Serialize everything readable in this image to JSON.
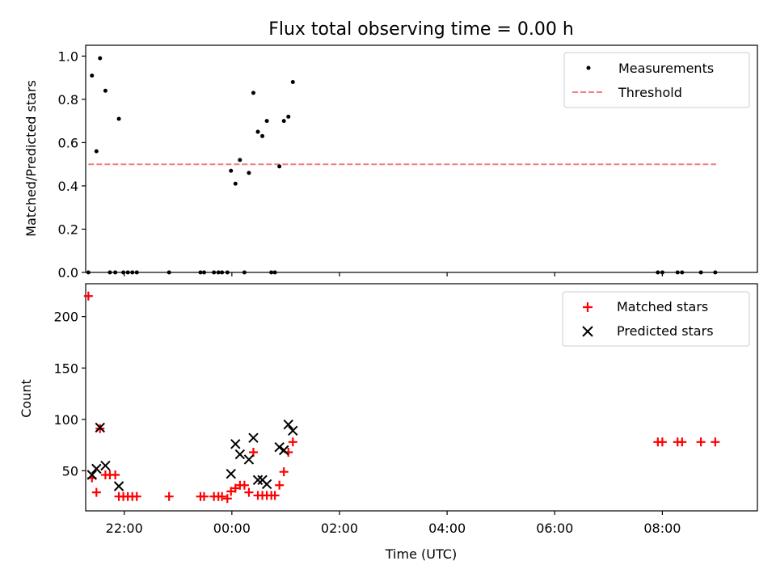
{
  "chart_data": [
    {
      "type": "scatter",
      "title": "Flux total observing time = 0.00 h",
      "ylabel": "Matched/Predicted stars",
      "xlim": [
        "21:17",
        "09:46"
      ],
      "ylim": [
        0,
        1.05
      ],
      "yticks": [
        0.0,
        0.2,
        0.4,
        0.6,
        0.8,
        1.0
      ],
      "ytick_labels": [
        "0.0",
        "0.2",
        "0.4",
        "0.6",
        "0.8",
        "1.0"
      ],
      "legend": {
        "position": "upper right",
        "entries": [
          "Measurements",
          "Threshold"
        ]
      },
      "threshold": {
        "name": "Threshold",
        "value": 0.5,
        "x_range": [
          "21:20",
          "09:00"
        ],
        "color": "#f08080",
        "style": "dashed"
      },
      "series": [
        {
          "name": "Measurements",
          "color": "#000000",
          "marker": "dot",
          "points": [
            [
              "21:20",
              0.0
            ],
            [
              "21:24",
              0.91
            ],
            [
              "21:29",
              0.56
            ],
            [
              "21:33",
              0.99
            ],
            [
              "21:39",
              0.84
            ],
            [
              "21:44",
              0.0
            ],
            [
              "21:50",
              0.0
            ],
            [
              "21:54",
              0.71
            ],
            [
              "21:59",
              0.0
            ],
            [
              "22:04",
              0.0
            ],
            [
              "22:09",
              0.0
            ],
            [
              "22:14",
              0.0
            ],
            [
              "22:50",
              0.0
            ],
            [
              "23:25",
              0.0
            ],
            [
              "23:29",
              0.0
            ],
            [
              "23:40",
              0.0
            ],
            [
              "23:45",
              0.0
            ],
            [
              "23:49",
              0.0
            ],
            [
              "23:55",
              0.0
            ],
            [
              "23:59",
              0.47
            ],
            [
              "00:04",
              0.41
            ],
            [
              "00:09",
              0.52
            ],
            [
              "00:14",
              0.0
            ],
            [
              "00:19",
              0.46
            ],
            [
              "00:24",
              0.83
            ],
            [
              "00:29",
              0.65
            ],
            [
              "00:34",
              0.63
            ],
            [
              "00:39",
              0.7
            ],
            [
              "00:44",
              0.0
            ],
            [
              "00:48",
              0.0
            ],
            [
              "00:53",
              0.49
            ],
            [
              "00:58",
              0.7
            ],
            [
              "01:03",
              0.72
            ],
            [
              "01:08",
              0.88
            ],
            [
              "07:55",
              0.0
            ],
            [
              "08:00",
              0.0
            ],
            [
              "08:17",
              0.0
            ],
            [
              "08:22",
              0.0
            ],
            [
              "08:43",
              0.0
            ],
            [
              "08:59",
              0.0
            ]
          ]
        }
      ]
    },
    {
      "type": "scatter",
      "xlabel": "Time (UTC)",
      "ylabel": "Count",
      "xlim": [
        "21:17",
        "09:46"
      ],
      "ylim": [
        11,
        232
      ],
      "yticks": [
        50,
        100,
        150,
        200
      ],
      "ytick_labels": [
        "50",
        "100",
        "150",
        "200"
      ],
      "xticks": [
        "22:00",
        "00:00",
        "02:00",
        "04:00",
        "06:00",
        "08:00"
      ],
      "legend": {
        "position": "upper right",
        "entries": [
          "Matched stars",
          "Predicted stars"
        ]
      },
      "series": [
        {
          "name": "Matched stars",
          "color": "#ff0000",
          "marker": "plus",
          "points": [
            [
              "21:20",
              220
            ],
            [
              "21:24",
              43
            ],
            [
              "21:29",
              29
            ],
            [
              "21:33",
              91
            ],
            [
              "21:39",
              46
            ],
            [
              "21:44",
              46
            ],
            [
              "21:50",
              46
            ],
            [
              "21:54",
              25
            ],
            [
              "21:59",
              25
            ],
            [
              "22:04",
              25
            ],
            [
              "22:09",
              25
            ],
            [
              "22:14",
              25
            ],
            [
              "22:50",
              25
            ],
            [
              "23:25",
              25
            ],
            [
              "23:29",
              25
            ],
            [
              "23:40",
              25
            ],
            [
              "23:45",
              25
            ],
            [
              "23:49",
              25
            ],
            [
              "23:55",
              23
            ],
            [
              "23:59",
              30
            ],
            [
              "00:04",
              33
            ],
            [
              "00:09",
              36
            ],
            [
              "00:14",
              36
            ],
            [
              "00:19",
              29
            ],
            [
              "00:24",
              68
            ],
            [
              "00:29",
              26
            ],
            [
              "00:34",
              26
            ],
            [
              "00:39",
              26
            ],
            [
              "00:44",
              26
            ],
            [
              "00:48",
              26
            ],
            [
              "00:53",
              36
            ],
            [
              "00:58",
              49
            ],
            [
              "01:03",
              68
            ],
            [
              "01:08",
              78
            ],
            [
              "07:55",
              78
            ],
            [
              "08:00",
              78
            ],
            [
              "08:17",
              78
            ],
            [
              "08:22",
              78
            ],
            [
              "08:43",
              78
            ],
            [
              "08:59",
              78
            ]
          ]
        },
        {
          "name": "Predicted stars",
          "color": "#000000",
          "marker": "x",
          "points": [
            [
              "21:24",
              46
            ],
            [
              "21:29",
              52
            ],
            [
              "21:33",
              92
            ],
            [
              "21:39",
              55
            ],
            [
              "21:54",
              35
            ],
            [
              "23:59",
              47
            ],
            [
              "00:04",
              76
            ],
            [
              "00:09",
              66
            ],
            [
              "00:19",
              61
            ],
            [
              "00:24",
              82
            ],
            [
              "00:29",
              41
            ],
            [
              "00:34",
              41
            ],
            [
              "00:39",
              37
            ],
            [
              "00:53",
              73
            ],
            [
              "00:58",
              70
            ],
            [
              "01:03",
              95
            ],
            [
              "01:08",
              89
            ]
          ]
        }
      ]
    }
  ]
}
